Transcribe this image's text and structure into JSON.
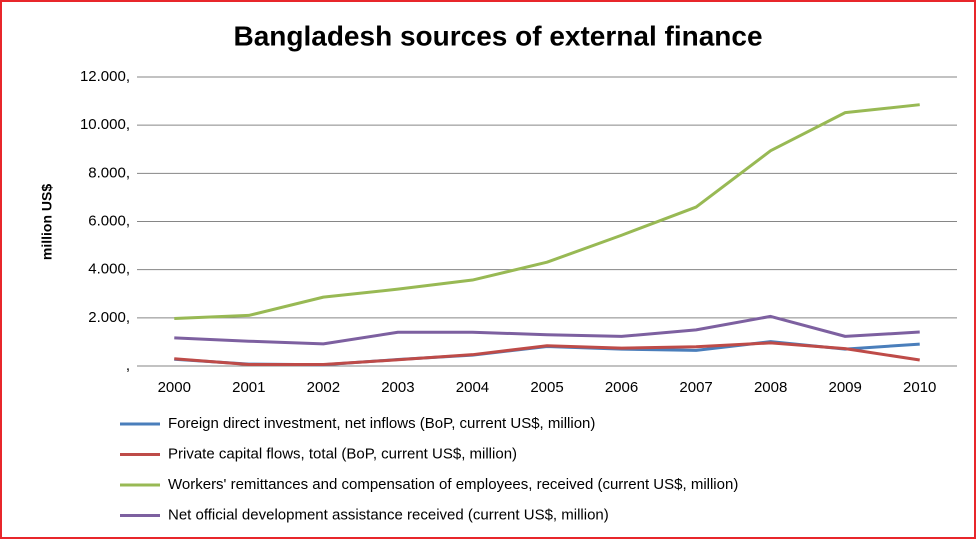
{
  "chart_data": {
    "type": "line",
    "title": "Bangladesh sources of external finance",
    "y_label": "million US$",
    "categories": [
      "2000",
      "2001",
      "2002",
      "2003",
      "2004",
      "2005",
      "2006",
      "2007",
      "2008",
      "2009",
      "2010"
    ],
    "series": [
      {
        "name": "Foreign direct investment, net inflows (BoP, current US$, million)",
        "color": "#4a7ebb",
        "values": [
          280,
          80,
          50,
          270,
          450,
          810,
          700,
          650,
          1010,
          700,
          910
        ]
      },
      {
        "name": "Private capital flows, total (BoP, current US$, million)",
        "color": "#be4b48",
        "values": [
          300,
          60,
          60,
          260,
          470,
          840,
          740,
          800,
          960,
          720,
          250
        ]
      },
      {
        "name": "Workers' remittances and compensation of employees, received (current US$, million)",
        "color": "#98b954",
        "values": [
          1970,
          2100,
          2860,
          3190,
          3570,
          4310,
          5430,
          6600,
          8940,
          10520,
          10850
        ]
      },
      {
        "name": "Net official development assistance received (current US$, million)",
        "color": "#7d60a0",
        "values": [
          1170,
          1030,
          920,
          1400,
          1400,
          1300,
          1230,
          1500,
          2060,
          1230,
          1410
        ]
      }
    ],
    "ylim": [
      0,
      12000
    ],
    "yticks": [
      {
        "value": 0,
        "label": ","
      },
      {
        "value": 2000,
        "label": "2.000,"
      },
      {
        "value": 4000,
        "label": "4.000,"
      },
      {
        "value": 6000,
        "label": "6.000,"
      },
      {
        "value": 8000,
        "label": "8.000,"
      },
      {
        "value": 10000,
        "label": "10.000,"
      },
      {
        "value": 12000,
        "label": "12.000,"
      }
    ],
    "grid": true,
    "legend": "bottom"
  }
}
